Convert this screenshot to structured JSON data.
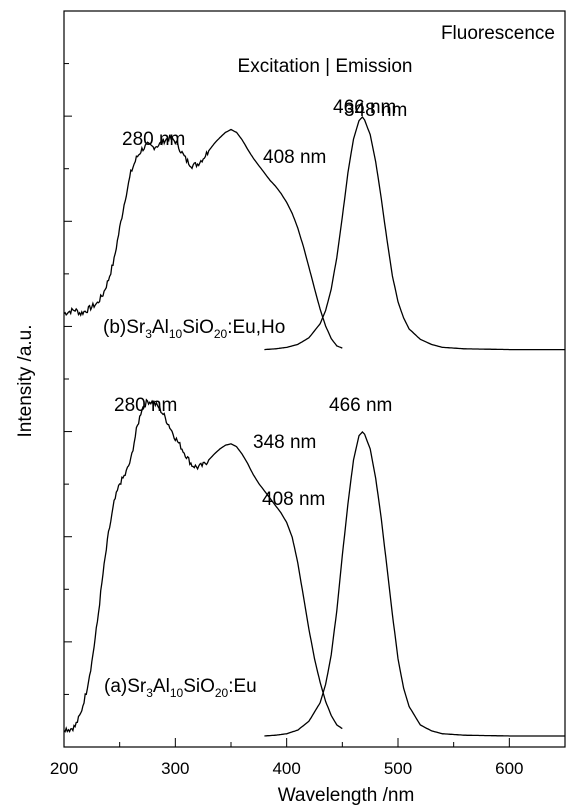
{
  "chart_data": {
    "type": "line",
    "title": "Fluorescence",
    "subtitle": "Excitation | Emission",
    "xlabel": "Wavelength /nm",
    "ylabel": "Intensity /a.u.",
    "xlim": [
      200,
      650
    ],
    "ylim": [
      0,
      1
    ],
    "x_ticks": [
      200,
      300,
      400,
      500,
      600
    ],
    "y_ticks_labeled": false,
    "grid": false,
    "legend": "none",
    "line_color": "#000000",
    "series": [
      {
        "name": "(b)Sr3Al10SiO20:Eu,Ho excitation",
        "points": [
          [
            200,
            0.589
          ],
          [
            205,
            0.592
          ],
          [
            210,
            0.594
          ],
          [
            215,
            0.589
          ],
          [
            220,
            0.593
          ],
          [
            225,
            0.598
          ],
          [
            230,
            0.603
          ],
          [
            235,
            0.615
          ],
          [
            240,
            0.635
          ],
          [
            245,
            0.662
          ],
          [
            250,
            0.705
          ],
          [
            255,
            0.745
          ],
          [
            260,
            0.78
          ],
          [
            265,
            0.8
          ],
          [
            270,
            0.812
          ],
          [
            275,
            0.818
          ],
          [
            280,
            0.815
          ],
          [
            285,
            0.818
          ],
          [
            290,
            0.824
          ],
          [
            295,
            0.828
          ],
          [
            300,
            0.823
          ],
          [
            305,
            0.81
          ],
          [
            310,
            0.797
          ],
          [
            315,
            0.79
          ],
          [
            320,
            0.792
          ],
          [
            325,
            0.8
          ],
          [
            330,
            0.81
          ],
          [
            335,
            0.82
          ],
          [
            340,
            0.828
          ],
          [
            345,
            0.835
          ],
          [
            350,
            0.839
          ],
          [
            355,
            0.835
          ],
          [
            360,
            0.825
          ],
          [
            365,
            0.812
          ],
          [
            370,
            0.8
          ],
          [
            375,
            0.79
          ],
          [
            380,
            0.78
          ],
          [
            385,
            0.77
          ],
          [
            390,
            0.762
          ],
          [
            395,
            0.752
          ],
          [
            400,
            0.74
          ],
          [
            405,
            0.725
          ],
          [
            410,
            0.705
          ],
          [
            415,
            0.68
          ],
          [
            420,
            0.652
          ],
          [
            425,
            0.623
          ],
          [
            430,
            0.595
          ],
          [
            435,
            0.572
          ],
          [
            440,
            0.555
          ],
          [
            445,
            0.545
          ],
          [
            450,
            0.542
          ]
        ]
      },
      {
        "name": "(b)Sr3Al10SiO20:Eu,Ho emission",
        "points": [
          [
            380,
            0.54
          ],
          [
            390,
            0.541
          ],
          [
            400,
            0.543
          ],
          [
            410,
            0.547
          ],
          [
            420,
            0.556
          ],
          [
            430,
            0.575
          ],
          [
            435,
            0.593
          ],
          [
            440,
            0.622
          ],
          [
            445,
            0.665
          ],
          [
            450,
            0.72
          ],
          [
            455,
            0.78
          ],
          [
            460,
            0.826
          ],
          [
            465,
            0.851
          ],
          [
            468,
            0.856
          ],
          [
            470,
            0.852
          ],
          [
            475,
            0.832
          ],
          [
            480,
            0.795
          ],
          [
            485,
            0.745
          ],
          [
            490,
            0.69
          ],
          [
            495,
            0.64
          ],
          [
            500,
            0.605
          ],
          [
            505,
            0.583
          ],
          [
            510,
            0.568
          ],
          [
            520,
            0.554
          ],
          [
            530,
            0.547
          ],
          [
            540,
            0.543
          ],
          [
            560,
            0.541
          ],
          [
            600,
            0.54
          ],
          [
            650,
            0.54
          ]
        ]
      },
      {
        "name": "(a)Sr3Al10SiO20:Eu excitation",
        "points": [
          [
            200,
            0.025
          ],
          [
            205,
            0.024
          ],
          [
            210,
            0.028
          ],
          [
            215,
            0.045
          ],
          [
            220,
            0.075
          ],
          [
            225,
            0.115
          ],
          [
            230,
            0.17
          ],
          [
            235,
            0.235
          ],
          [
            240,
            0.29
          ],
          [
            245,
            0.332
          ],
          [
            250,
            0.358
          ],
          [
            255,
            0.37
          ],
          [
            260,
            0.39
          ],
          [
            265,
            0.43
          ],
          [
            270,
            0.46
          ],
          [
            275,
            0.47
          ],
          [
            280,
            0.468
          ],
          [
            285,
            0.462
          ],
          [
            290,
            0.45
          ],
          [
            295,
            0.435
          ],
          [
            300,
            0.42
          ],
          [
            305,
            0.408
          ],
          [
            310,
            0.395
          ],
          [
            315,
            0.383
          ],
          [
            320,
            0.38
          ],
          [
            325,
            0.383
          ],
          [
            330,
            0.39
          ],
          [
            335,
            0.398
          ],
          [
            340,
            0.405
          ],
          [
            345,
            0.41
          ],
          [
            350,
            0.412
          ],
          [
            355,
            0.408
          ],
          [
            360,
            0.398
          ],
          [
            365,
            0.385
          ],
          [
            370,
            0.37
          ],
          [
            375,
            0.358
          ],
          [
            380,
            0.348
          ],
          [
            385,
            0.338
          ],
          [
            390,
            0.328
          ],
          [
            395,
            0.318
          ],
          [
            400,
            0.305
          ],
          [
            405,
            0.285
          ],
          [
            410,
            0.25
          ],
          [
            415,
            0.205
          ],
          [
            420,
            0.16
          ],
          [
            425,
            0.12
          ],
          [
            430,
            0.088
          ],
          [
            435,
            0.062
          ],
          [
            440,
            0.043
          ],
          [
            445,
            0.03
          ],
          [
            450,
            0.025
          ]
        ]
      },
      {
        "name": "(a)Sr3Al10SiO20:Eu emission",
        "points": [
          [
            380,
            0.015
          ],
          [
            390,
            0.016
          ],
          [
            400,
            0.018
          ],
          [
            410,
            0.023
          ],
          [
            420,
            0.035
          ],
          [
            430,
            0.06
          ],
          [
            435,
            0.085
          ],
          [
            440,
            0.125
          ],
          [
            445,
            0.185
          ],
          [
            450,
            0.26
          ],
          [
            455,
            0.33
          ],
          [
            460,
            0.39
          ],
          [
            465,
            0.423
          ],
          [
            468,
            0.428
          ],
          [
            470,
            0.425
          ],
          [
            475,
            0.405
          ],
          [
            480,
            0.365
          ],
          [
            485,
            0.31
          ],
          [
            490,
            0.245
          ],
          [
            495,
            0.18
          ],
          [
            500,
            0.12
          ],
          [
            505,
            0.08
          ],
          [
            510,
            0.055
          ],
          [
            520,
            0.03
          ],
          [
            530,
            0.022
          ],
          [
            540,
            0.018
          ],
          [
            560,
            0.016
          ],
          [
            600,
            0.015
          ],
          [
            650,
            0.015
          ]
        ]
      }
    ],
    "annotations": {
      "b_280": "280 nm",
      "b_348": "348 nm",
      "b_408": "408 nm",
      "b_466": "466 nm",
      "b_label": {
        "pre": "(b)Sr",
        "s1": "3",
        "mid1": "Al",
        "s2": "10",
        "mid2": "SiO",
        "s3": "20",
        "post": ":Eu,Ho"
      },
      "a_280": "280 nm",
      "a_348": "348 nm",
      "a_408": "408 nm",
      "a_466": "466 nm",
      "a_label": {
        "pre": "(a)Sr",
        "s1": "3",
        "mid1": "Al",
        "s2": "10",
        "mid2": "SiO",
        "s3": "20",
        "post": ":Eu"
      }
    }
  }
}
